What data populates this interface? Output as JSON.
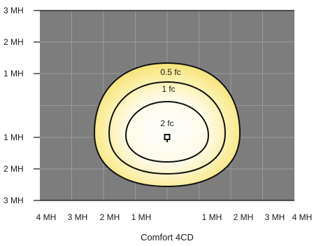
{
  "figure": {
    "caption": "Comfort 4CD",
    "colors": {
      "background": "#7d7d7d",
      "grid": "#9a9a9a",
      "contour_stroke": "#111111",
      "fill_outer": "#f5df6a",
      "fill_inner": "#ffffff"
    }
  },
  "axes": {
    "y_labels": [
      "3 MH",
      "2 MH",
      "1 MH",
      "1 MH",
      "2 MH",
      "3 MH"
    ],
    "x_labels": [
      "4 MH",
      "3 MH",
      "2 MH",
      "1 MH",
      "1 MH",
      "2 MH",
      "3 MH",
      "4 MH"
    ]
  },
  "contours": [
    {
      "label": "0.5 fc"
    },
    {
      "label": "1 fc"
    },
    {
      "label": "2 fc"
    }
  ],
  "fixture": {
    "icon": "luminaire-marker-icon"
  }
}
